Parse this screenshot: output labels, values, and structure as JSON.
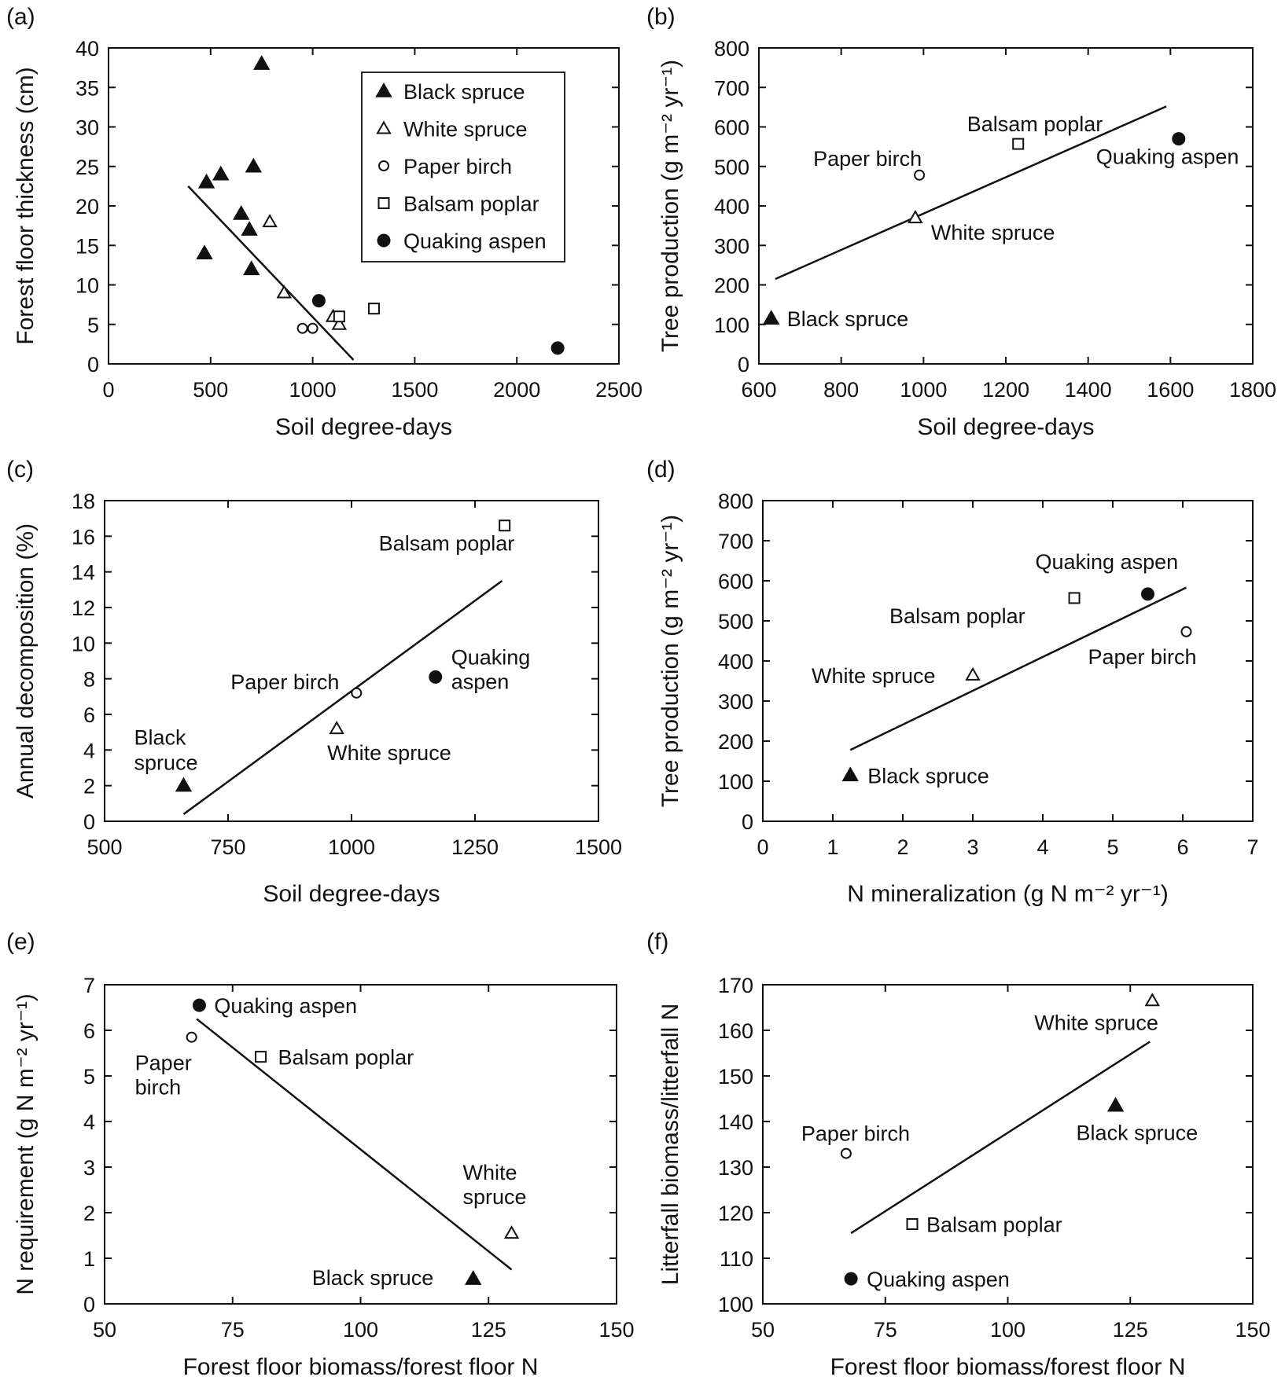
{
  "chart_data": [
    {
      "panel": "(a)",
      "type": "scatter",
      "xlabel": "Soil degree-days",
      "ylabel": "Forest floor thickness (cm)",
      "xlim": [
        0,
        2500
      ],
      "ylim": [
        0,
        40
      ],
      "xticks": [
        0,
        500,
        1000,
        1500,
        2000,
        2500
      ],
      "yticks": [
        0,
        5,
        10,
        15,
        20,
        25,
        30,
        35,
        40
      ],
      "legend_position": "top-right",
      "legend": [
        {
          "marker": "filled-triangle",
          "label": "Black spruce"
        },
        {
          "marker": "open-triangle",
          "label": "White spruce"
        },
        {
          "marker": "open-circle",
          "label": "Paper birch"
        },
        {
          "marker": "open-square",
          "label": "Balsam poplar"
        },
        {
          "marker": "filled-circle",
          "label": "Quaking aspen"
        }
      ],
      "series": [
        {
          "name": "Black spruce",
          "marker": "filled-triangle",
          "points": [
            [
              750,
              38
            ],
            [
              480,
              23
            ],
            [
              550,
              24
            ],
            [
              710,
              25
            ],
            [
              650,
              19
            ],
            [
              690,
              17
            ],
            [
              470,
              14
            ],
            [
              700,
              12
            ]
          ]
        },
        {
          "name": "White spruce",
          "marker": "open-triangle",
          "points": [
            [
              790,
              18
            ],
            [
              860,
              9
            ],
            [
              1100,
              6
            ],
            [
              1130,
              5
            ]
          ]
        },
        {
          "name": "Paper birch",
          "marker": "open-circle",
          "points": [
            [
              950,
              4.5
            ],
            [
              1000,
              4.5
            ]
          ]
        },
        {
          "name": "Balsam poplar",
          "marker": "open-square",
          "points": [
            [
              1130,
              6
            ],
            [
              1300,
              7
            ]
          ]
        },
        {
          "name": "Quaking aspen",
          "marker": "filled-circle",
          "points": [
            [
              1030,
              8
            ],
            [
              2200,
              2
            ]
          ]
        }
      ],
      "fit_line": [
        [
          390,
          22.5
        ],
        [
          1200,
          0.5
        ]
      ],
      "point_labels": []
    },
    {
      "panel": "(b)",
      "type": "scatter",
      "xlabel": "Soil degree-days",
      "ylabel": "Tree production (g m⁻² yr⁻¹)",
      "xlim": [
        600,
        1800
      ],
      "ylim": [
        0,
        800
      ],
      "xticks": [
        600,
        800,
        1000,
        1200,
        1400,
        1600,
        1800
      ],
      "yticks": [
        0,
        100,
        200,
        300,
        400,
        500,
        600,
        700,
        800
      ],
      "series": [
        {
          "name": "Black spruce",
          "marker": "filled-triangle",
          "points": [
            [
              630,
              115
            ]
          ]
        },
        {
          "name": "White spruce",
          "marker": "open-triangle",
          "points": [
            [
              980,
              370
            ]
          ]
        },
        {
          "name": "Paper birch",
          "marker": "open-circle",
          "points": [
            [
              990,
              478
            ]
          ]
        },
        {
          "name": "Balsam poplar",
          "marker": "open-square",
          "points": [
            [
              1230,
              557
            ]
          ]
        },
        {
          "name": "Quaking aspen",
          "marker": "filled-circle",
          "points": [
            [
              1620,
              570
            ]
          ]
        }
      ],
      "fit_line": [
        [
          640,
          215
        ],
        [
          1590,
          652
        ]
      ],
      "point_labels": [
        {
          "text": "Black spruce",
          "x": 630,
          "y": 115,
          "dx": 20,
          "dy": 10,
          "anchor": "start"
        },
        {
          "text": "White spruce",
          "x": 980,
          "y": 370,
          "dx": 20,
          "dy": 28,
          "anchor": "start"
        },
        {
          "text": "Paper birch",
          "x": 990,
          "y": 478,
          "dx": -135,
          "dy": -12,
          "anchor": "start"
        },
        {
          "text": "Balsam poplar",
          "x": 1230,
          "y": 557,
          "dx": -65,
          "dy": -16,
          "anchor": "start"
        },
        {
          "text": "Quaking aspen",
          "x": 1620,
          "y": 570,
          "dx": -105,
          "dy": 32,
          "anchor": "start"
        }
      ]
    },
    {
      "panel": "(c)",
      "type": "scatter",
      "xlabel": "Soil degree-days",
      "ylabel": "Annual decomposition (%)",
      "xlim": [
        500,
        1500
      ],
      "ylim": [
        0,
        18
      ],
      "xticks": [
        500,
        750,
        1000,
        1250,
        1500
      ],
      "yticks": [
        0,
        2,
        4,
        6,
        8,
        10,
        12,
        14,
        16,
        18
      ],
      "series": [
        {
          "name": "Black spruce",
          "marker": "filled-triangle",
          "points": [
            [
              660,
              2
            ]
          ]
        },
        {
          "name": "White spruce",
          "marker": "open-triangle",
          "points": [
            [
              970,
              5.2
            ]
          ]
        },
        {
          "name": "Paper birch",
          "marker": "open-circle",
          "points": [
            [
              1010,
              7.2
            ]
          ]
        },
        {
          "name": "Balsam poplar",
          "marker": "open-square",
          "points": [
            [
              1310,
              16.6
            ]
          ]
        },
        {
          "name": "Quaking aspen",
          "marker": "filled-circle",
          "points": [
            [
              1170,
              8.1
            ]
          ]
        }
      ],
      "fit_line": [
        [
          660,
          0.4
        ],
        [
          1305,
          13.5
        ]
      ],
      "point_labels": [
        {
          "text": "Black",
          "x": 660,
          "y": 2,
          "dx": -63,
          "dy": -52,
          "anchor": "start"
        },
        {
          "text": "spruce",
          "x": 660,
          "y": 2,
          "dx": -63,
          "dy": -20,
          "anchor": "start"
        },
        {
          "text": "White spruce",
          "x": 970,
          "y": 5.2,
          "dx": -12,
          "dy": 40,
          "anchor": "start"
        },
        {
          "text": "Paper birch",
          "x": 1010,
          "y": 7.2,
          "dx": -160,
          "dy": -5,
          "anchor": "start"
        },
        {
          "text": "Quaking",
          "x": 1170,
          "y": 8.1,
          "dx": 20,
          "dy": -16,
          "anchor": "start"
        },
        {
          "text": "aspen",
          "x": 1170,
          "y": 8.1,
          "dx": 20,
          "dy": 15,
          "anchor": "start"
        },
        {
          "text": "Balsam poplar",
          "x": 1310,
          "y": 16.6,
          "dx": -160,
          "dy": 32,
          "anchor": "start"
        }
      ]
    },
    {
      "panel": "(d)",
      "type": "scatter",
      "xlabel": "N mineralization (g N m⁻² yr⁻¹)",
      "ylabel": "Tree production (g m⁻² yr⁻¹)",
      "xlim": [
        0,
        7
      ],
      "ylim": [
        0,
        800
      ],
      "xticks": [
        0,
        1,
        2,
        3,
        4,
        5,
        6,
        7
      ],
      "yticks": [
        0,
        100,
        200,
        300,
        400,
        500,
        600,
        700,
        800
      ],
      "series": [
        {
          "name": "Black spruce",
          "marker": "filled-triangle",
          "points": [
            [
              1.25,
              115
            ]
          ]
        },
        {
          "name": "White spruce",
          "marker": "open-triangle",
          "points": [
            [
              3.0,
              365
            ]
          ]
        },
        {
          "name": "Paper birch",
          "marker": "open-circle",
          "points": [
            [
              6.05,
              473
            ]
          ]
        },
        {
          "name": "Balsam poplar",
          "marker": "open-square",
          "points": [
            [
              4.45,
              557
            ]
          ]
        },
        {
          "name": "Quaking aspen",
          "marker": "filled-circle",
          "points": [
            [
              5.5,
              567
            ]
          ]
        }
      ],
      "fit_line": [
        [
          1.25,
          178
        ],
        [
          6.05,
          583
        ]
      ],
      "point_labels": [
        {
          "text": "Black spruce",
          "x": 1.25,
          "y": 115,
          "dx": 22,
          "dy": 10,
          "anchor": "start"
        },
        {
          "text": "White spruce",
          "x": 3.0,
          "y": 365,
          "dx": -205,
          "dy": 10,
          "anchor": "start"
        },
        {
          "text": "Paper birch",
          "x": 6.05,
          "y": 473,
          "dx": -125,
          "dy": 41,
          "anchor": "start"
        },
        {
          "text": "Balsam poplar",
          "x": 4.45,
          "y": 557,
          "dx": -235,
          "dy": 32,
          "anchor": "start"
        },
        {
          "text": "Quaking aspen",
          "x": 5.5,
          "y": 567,
          "dx": -143,
          "dy": -32,
          "anchor": "start"
        }
      ]
    },
    {
      "panel": "(e)",
      "type": "scatter",
      "xlabel": "Forest floor biomass/forest floor N",
      "ylabel": "N requirement (g N m⁻² yr⁻¹)",
      "xlim": [
        50,
        150
      ],
      "ylim": [
        0,
        7
      ],
      "xticks": [
        50,
        75,
        100,
        125,
        150
      ],
      "yticks": [
        0,
        1,
        2,
        3,
        4,
        5,
        6,
        7
      ],
      "series": [
        {
          "name": "Black spruce",
          "marker": "filled-triangle",
          "points": [
            [
              122,
              0.55
            ]
          ]
        },
        {
          "name": "White spruce",
          "marker": "open-triangle",
          "points": [
            [
              129.5,
              1.55
            ]
          ]
        },
        {
          "name": "Paper birch",
          "marker": "open-circle",
          "points": [
            [
              67,
              5.85
            ]
          ]
        },
        {
          "name": "Balsam poplar",
          "marker": "open-square",
          "points": [
            [
              80.5,
              5.42
            ]
          ]
        },
        {
          "name": "Quaking aspen",
          "marker": "filled-circle",
          "points": [
            [
              68.5,
              6.55
            ]
          ]
        }
      ],
      "fit_line": [
        [
          68,
          6.25
        ],
        [
          129.5,
          0.75
        ]
      ],
      "point_labels": [
        {
          "text": "Quaking aspen",
          "x": 68.5,
          "y": 6.55,
          "dx": 19,
          "dy": 10,
          "anchor": "start"
        },
        {
          "text": "Paper",
          "x": 67,
          "y": 5.85,
          "dx": -72,
          "dy": 42,
          "anchor": "start"
        },
        {
          "text": "birch",
          "x": 67,
          "y": 5.85,
          "dx": -72,
          "dy": 73,
          "anchor": "start"
        },
        {
          "text": "Balsam poplar",
          "x": 80.5,
          "y": 5.42,
          "dx": 22,
          "dy": 10,
          "anchor": "start"
        },
        {
          "text": "White",
          "x": 129.5,
          "y": 1.55,
          "dx": -62,
          "dy": -68,
          "anchor": "start"
        },
        {
          "text": "spruce",
          "x": 129.5,
          "y": 1.55,
          "dx": -62,
          "dy": -37,
          "anchor": "start"
        },
        {
          "text": "Black spruce",
          "x": 122,
          "y": 0.55,
          "dx": -205,
          "dy": 8,
          "anchor": "start"
        }
      ]
    },
    {
      "panel": "(f)",
      "type": "scatter",
      "xlabel": "Forest floor biomass/forest floor N",
      "ylabel": "Litterfall biomass/litterfall N",
      "xlim": [
        50,
        150
      ],
      "ylim": [
        100,
        170
      ],
      "xticks": [
        50,
        75,
        100,
        125,
        150
      ],
      "yticks": [
        100,
        110,
        120,
        130,
        140,
        150,
        160,
        170
      ],
      "series": [
        {
          "name": "Black spruce",
          "marker": "filled-triangle",
          "points": [
            [
              122,
              143.5
            ]
          ]
        },
        {
          "name": "White spruce",
          "marker": "open-triangle",
          "points": [
            [
              129.5,
              166.5
            ]
          ]
        },
        {
          "name": "Paper birch",
          "marker": "open-circle",
          "points": [
            [
              67,
              133
            ]
          ]
        },
        {
          "name": "Balsam poplar",
          "marker": "open-square",
          "points": [
            [
              80.5,
              117.5
            ]
          ]
        },
        {
          "name": "Quaking aspen",
          "marker": "filled-circle",
          "points": [
            [
              68,
              105.5
            ]
          ]
        }
      ],
      "fit_line": [
        [
          68,
          115.5
        ],
        [
          129,
          157.5
        ]
      ],
      "point_labels": [
        {
          "text": "Paper birch",
          "x": 67,
          "y": 133,
          "dx": -57,
          "dy": -16,
          "anchor": "start"
        },
        {
          "text": "Balsam poplar",
          "x": 80.5,
          "y": 117.5,
          "dx": 18,
          "dy": 10,
          "anchor": "start"
        },
        {
          "text": "Quaking aspen",
          "x": 68,
          "y": 105.5,
          "dx": 20,
          "dy": 10,
          "anchor": "start"
        },
        {
          "text": "Black spruce",
          "x": 122,
          "y": 143.5,
          "dx": -50,
          "dy": 44,
          "anchor": "start"
        },
        {
          "text": "White spruce",
          "x": 129.5,
          "y": 166.5,
          "dx": -150,
          "dy": 37,
          "anchor": "start"
        }
      ]
    }
  ]
}
